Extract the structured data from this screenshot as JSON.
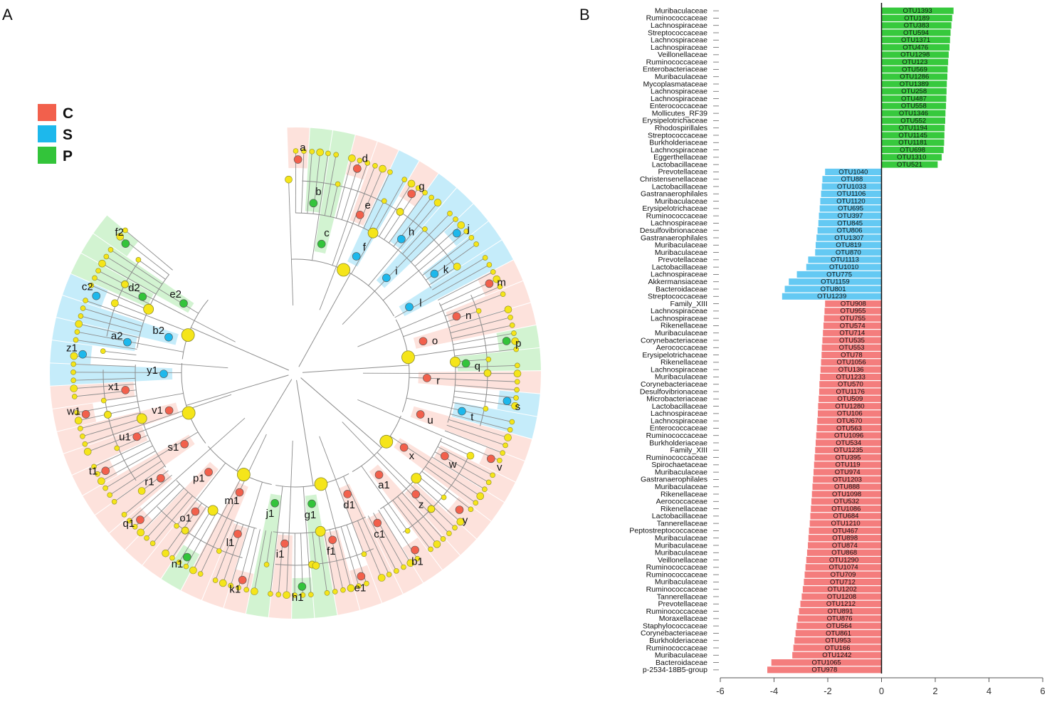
{
  "panels": {
    "a_label": "A",
    "b_label": "B"
  },
  "colors": {
    "C": "#f2604c",
    "S": "#1db8ec",
    "P": "#33c43a",
    "node": "#f5e51a",
    "line": "#8c8c8c",
    "C_shade": "#fbcfc4",
    "S_shade": "#9fdff7",
    "P_shade": "#b4ebb2",
    "bar_C": "#f47d7d",
    "bar_S": "#64c9f3",
    "bar_P": "#37c93d"
  },
  "legend": [
    {
      "key": "C",
      "label": "C"
    },
    {
      "key": "S",
      "label": "S"
    },
    {
      "key": "P",
      "label": "P"
    }
  ],
  "cladogram": {
    "markers": [
      {
        "label": "a",
        "group": "C"
      },
      {
        "label": "b",
        "group": "P"
      },
      {
        "label": "c",
        "group": "P"
      },
      {
        "label": "d",
        "group": "C"
      },
      {
        "label": "e",
        "group": "C"
      },
      {
        "label": "f",
        "group": "S"
      },
      {
        "label": "g",
        "group": "C"
      },
      {
        "label": "h",
        "group": "S"
      },
      {
        "label": "i",
        "group": "S"
      },
      {
        "label": "j",
        "group": "S"
      },
      {
        "label": "k",
        "group": "S"
      },
      {
        "label": "l",
        "group": "S"
      },
      {
        "label": "m",
        "group": "C"
      },
      {
        "label": "n",
        "group": "C"
      },
      {
        "label": "o",
        "group": "C"
      },
      {
        "label": "p",
        "group": "P"
      },
      {
        "label": "q",
        "group": "P"
      },
      {
        "label": "r",
        "group": "C"
      },
      {
        "label": "s",
        "group": "S"
      },
      {
        "label": "t",
        "group": "S"
      },
      {
        "label": "u",
        "group": "C"
      },
      {
        "label": "v",
        "group": "C"
      },
      {
        "label": "w",
        "group": "C"
      },
      {
        "label": "x",
        "group": "C"
      },
      {
        "label": "y",
        "group": "C"
      },
      {
        "label": "z",
        "group": "C"
      },
      {
        "label": "a1",
        "group": "C"
      },
      {
        "label": "b1",
        "group": "C"
      },
      {
        "label": "c1",
        "group": "C"
      },
      {
        "label": "d1",
        "group": "C"
      },
      {
        "label": "e1",
        "group": "C"
      },
      {
        "label": "f1",
        "group": "C"
      },
      {
        "label": "g1",
        "group": "P"
      },
      {
        "label": "h1",
        "group": "P"
      },
      {
        "label": "i1",
        "group": "C"
      },
      {
        "label": "j1",
        "group": "P"
      },
      {
        "label": "k1",
        "group": "C"
      },
      {
        "label": "l1",
        "group": "C"
      },
      {
        "label": "m1",
        "group": "C"
      },
      {
        "label": "n1",
        "group": "P"
      },
      {
        "label": "o1",
        "group": "C"
      },
      {
        "label": "p1",
        "group": "C"
      },
      {
        "label": "q1",
        "group": "C"
      },
      {
        "label": "r1",
        "group": "C"
      },
      {
        "label": "s1",
        "group": "C"
      },
      {
        "label": "t1",
        "group": "C"
      },
      {
        "label": "u1",
        "group": "C"
      },
      {
        "label": "v1",
        "group": "C"
      },
      {
        "label": "w1",
        "group": "C"
      },
      {
        "label": "x1",
        "group": "C"
      },
      {
        "label": "y1",
        "group": "S"
      },
      {
        "label": "z1",
        "group": "S"
      },
      {
        "label": "a2",
        "group": "S"
      },
      {
        "label": "b2",
        "group": "S"
      },
      {
        "label": "c2",
        "group": "S"
      },
      {
        "label": "d2",
        "group": "P"
      },
      {
        "label": "e2",
        "group": "P"
      },
      {
        "label": "f2",
        "group": "P"
      }
    ]
  },
  "chart_data": {
    "type": "bar",
    "orientation": "horizontal",
    "title": "",
    "xlabel": "",
    "ylabel": "",
    "xlim": [
      -6,
      6
    ],
    "xticks": [
      -6,
      -4,
      -2,
      0,
      2,
      4,
      6
    ],
    "categories": [
      "Muribaculaceae",
      "Ruminococcaceae",
      "Lachnospiraceae",
      "Streptococcaceae",
      "Lachnospiraceae",
      "Lachnospiraceae",
      "Veillonellaceae",
      "Ruminococcaceae",
      "Enterobacteriaceae",
      "Muribaculaceae",
      "Mycoplasmataceae",
      "Lachnospiraceae",
      "Lachnospiraceae",
      "Enterococcaceae",
      "Mollicutes_RF39",
      "Erysipelotrichaceae",
      "Rhodospirillales",
      "Streptococcaceae",
      "Burkholderiaceae",
      "Lachnospiraceae",
      "Eggerthellaceae",
      "Lactobacillaceae",
      "Prevotellaceae",
      "Christensenellaceae",
      "Lactobacillaceae",
      "Gastranaerophilales",
      "Muribaculaceae",
      "Erysipelotrichaceae",
      "Ruminococcaceae",
      "Lachnospiraceae",
      "Desulfovibrionaceae",
      "Gastranaerophilales",
      "Muribaculaceae",
      "Muribaculaceae",
      "Prevotellaceae",
      "Lactobacillaceae",
      "Lachnospiraceae",
      "Akkermansiaceae",
      "Bacteroidaceae",
      "Streptococcaceae",
      "Family_XIII",
      "Lachnospiraceae",
      "Lachnospiraceae",
      "Rikenellaceae",
      "Muribaculaceae",
      "Corynebacteriaceae",
      "Aerococcaceae",
      "Erysipelotrichaceae",
      "Rikenellaceae",
      "Lachnospiraceae",
      "Muribaculaceae",
      "Corynebacteriaceae",
      "Desulfovibrionaceae",
      "Microbacteriaceae",
      "Lactobacillaceae",
      "Lachnospiraceae",
      "Lachnospiraceae",
      "Enterococcaceae",
      "Ruminococcaceae",
      "Burkholderiaceae",
      "Family_XIII",
      "Ruminococcaceae",
      "Spirochaetaceae",
      "Muribaculaceae",
      "Gastranaerophilales",
      "Muribaculaceae",
      "Rikenellaceae",
      "Aerococcaceae",
      "Rikenellaceae",
      "Lactobacillaceae",
      "Tannerellaceae",
      "Peptostreptococcaceae",
      "Muribaculaceae",
      "Muribaculaceae",
      "Muribaculaceae",
      "Veillonellaceae",
      "Ruminococcaceae",
      "Ruminococcaceae",
      "Muribaculaceae",
      "Ruminococcaceae",
      "Tannerellaceae",
      "Prevotellaceae",
      "Ruminococcaceae",
      "Moraxellaceae",
      "Staphylococcaceae",
      "Corynebacteriaceae",
      "Burkholderiaceae",
      "Ruminococcaceae",
      "Muribaculaceae",
      "Bacteroidaceae",
      "p-2534-18B5-group"
    ],
    "otu": [
      "OTU1393",
      "OTU189",
      "OTU383",
      "OTU594",
      "OTU1371",
      "OTU476",
      "OTU1298",
      "OTU123",
      "OTU569",
      "OTU1286",
      "OTU1389",
      "OTU258",
      "OTU487",
      "OTU558",
      "OTU1346",
      "OTU552",
      "OTU1194",
      "OTU1145",
      "OTU1181",
      "OTU698",
      "OTU1310",
      "OTU521",
      "OTU1040",
      "OTU88",
      "OTU1033",
      "OTU1106",
      "OTU1120",
      "OTU695",
      "OTU397",
      "OTU845",
      "OTU806",
      "OTU1307",
      "OTU819",
      "OTU870",
      "OTU1113",
      "OTU1010",
      "OTU775",
      "OTU1159",
      "OTU801",
      "OTU1239",
      "OTU908",
      "OTU955",
      "OTU755",
      "OTU574",
      "OTU714",
      "OTU535",
      "OTU553",
      "OTU78",
      "OTU1056",
      "OTU136",
      "OTU1233",
      "OTU570",
      "OTU1176",
      "OTU509",
      "OTU1280",
      "OTU106",
      "OTU670",
      "OTU563",
      "OTU1096",
      "OTU534",
      "OTU1235",
      "OTU395",
      "OTU119",
      "OTU974",
      "OTU1203",
      "OTU888",
      "OTU1098",
      "OTU532",
      "OTU1086",
      "OTU684",
      "OTU1210",
      "OTU467",
      "OTU898",
      "OTU874",
      "OTU868",
      "OTU1290",
      "OTU1074",
      "OTU709",
      "OTU712",
      "OTU1202",
      "OTU1208",
      "OTU1212",
      "OTU891",
      "OTU876",
      "OTU564",
      "OTU861",
      "OTU953",
      "OTU166",
      "OTU1242",
      "OTU1065",
      "OTU978"
    ],
    "groups": [
      "P",
      "P",
      "P",
      "P",
      "P",
      "P",
      "P",
      "P",
      "P",
      "P",
      "P",
      "P",
      "P",
      "P",
      "P",
      "P",
      "P",
      "P",
      "P",
      "P",
      "P",
      "P",
      "S",
      "S",
      "S",
      "S",
      "S",
      "S",
      "S",
      "S",
      "S",
      "S",
      "S",
      "S",
      "S",
      "S",
      "S",
      "S",
      "S",
      "S",
      "C",
      "C",
      "C",
      "C",
      "C",
      "C",
      "C",
      "C",
      "C",
      "C",
      "C",
      "C",
      "C",
      "C",
      "C",
      "C",
      "C",
      "C",
      "C",
      "C",
      "C",
      "C",
      "C",
      "C",
      "C",
      "C",
      "C",
      "C",
      "C",
      "C",
      "C",
      "C",
      "C",
      "C",
      "C",
      "C",
      "C",
      "C",
      "C",
      "C",
      "C",
      "C",
      "C",
      "C",
      "C",
      "C",
      "C",
      "C",
      "C",
      "C",
      "C"
    ],
    "values": [
      2.68,
      2.63,
      2.6,
      2.57,
      2.55,
      2.53,
      2.5,
      2.48,
      2.46,
      2.45,
      2.43,
      2.42,
      2.41,
      2.4,
      2.38,
      2.37,
      2.35,
      2.34,
      2.33,
      2.31,
      2.24,
      2.09,
      -2.1,
      -2.2,
      -2.22,
      -2.25,
      -2.28,
      -2.3,
      -2.33,
      -2.35,
      -2.38,
      -2.42,
      -2.45,
      -2.47,
      -2.73,
      -2.8,
      -3.15,
      -3.45,
      -3.6,
      -3.7,
      -2.1,
      -2.12,
      -2.14,
      -2.16,
      -2.18,
      -2.2,
      -2.22,
      -2.23,
      -2.25,
      -2.27,
      -2.29,
      -2.31,
      -2.32,
      -2.34,
      -2.36,
      -2.37,
      -2.39,
      -2.41,
      -2.43,
      -2.45,
      -2.47,
      -2.49,
      -2.51,
      -2.53,
      -2.55,
      -2.57,
      -2.59,
      -2.61,
      -2.63,
      -2.65,
      -2.67,
      -2.7,
      -2.72,
      -2.74,
      -2.77,
      -2.8,
      -2.83,
      -2.86,
      -2.89,
      -2.93,
      -2.97,
      -3.02,
      -3.07,
      -3.12,
      -3.16,
      -3.2,
      -3.24,
      -3.28,
      -3.32,
      -4.1,
      -4.25
    ]
  }
}
